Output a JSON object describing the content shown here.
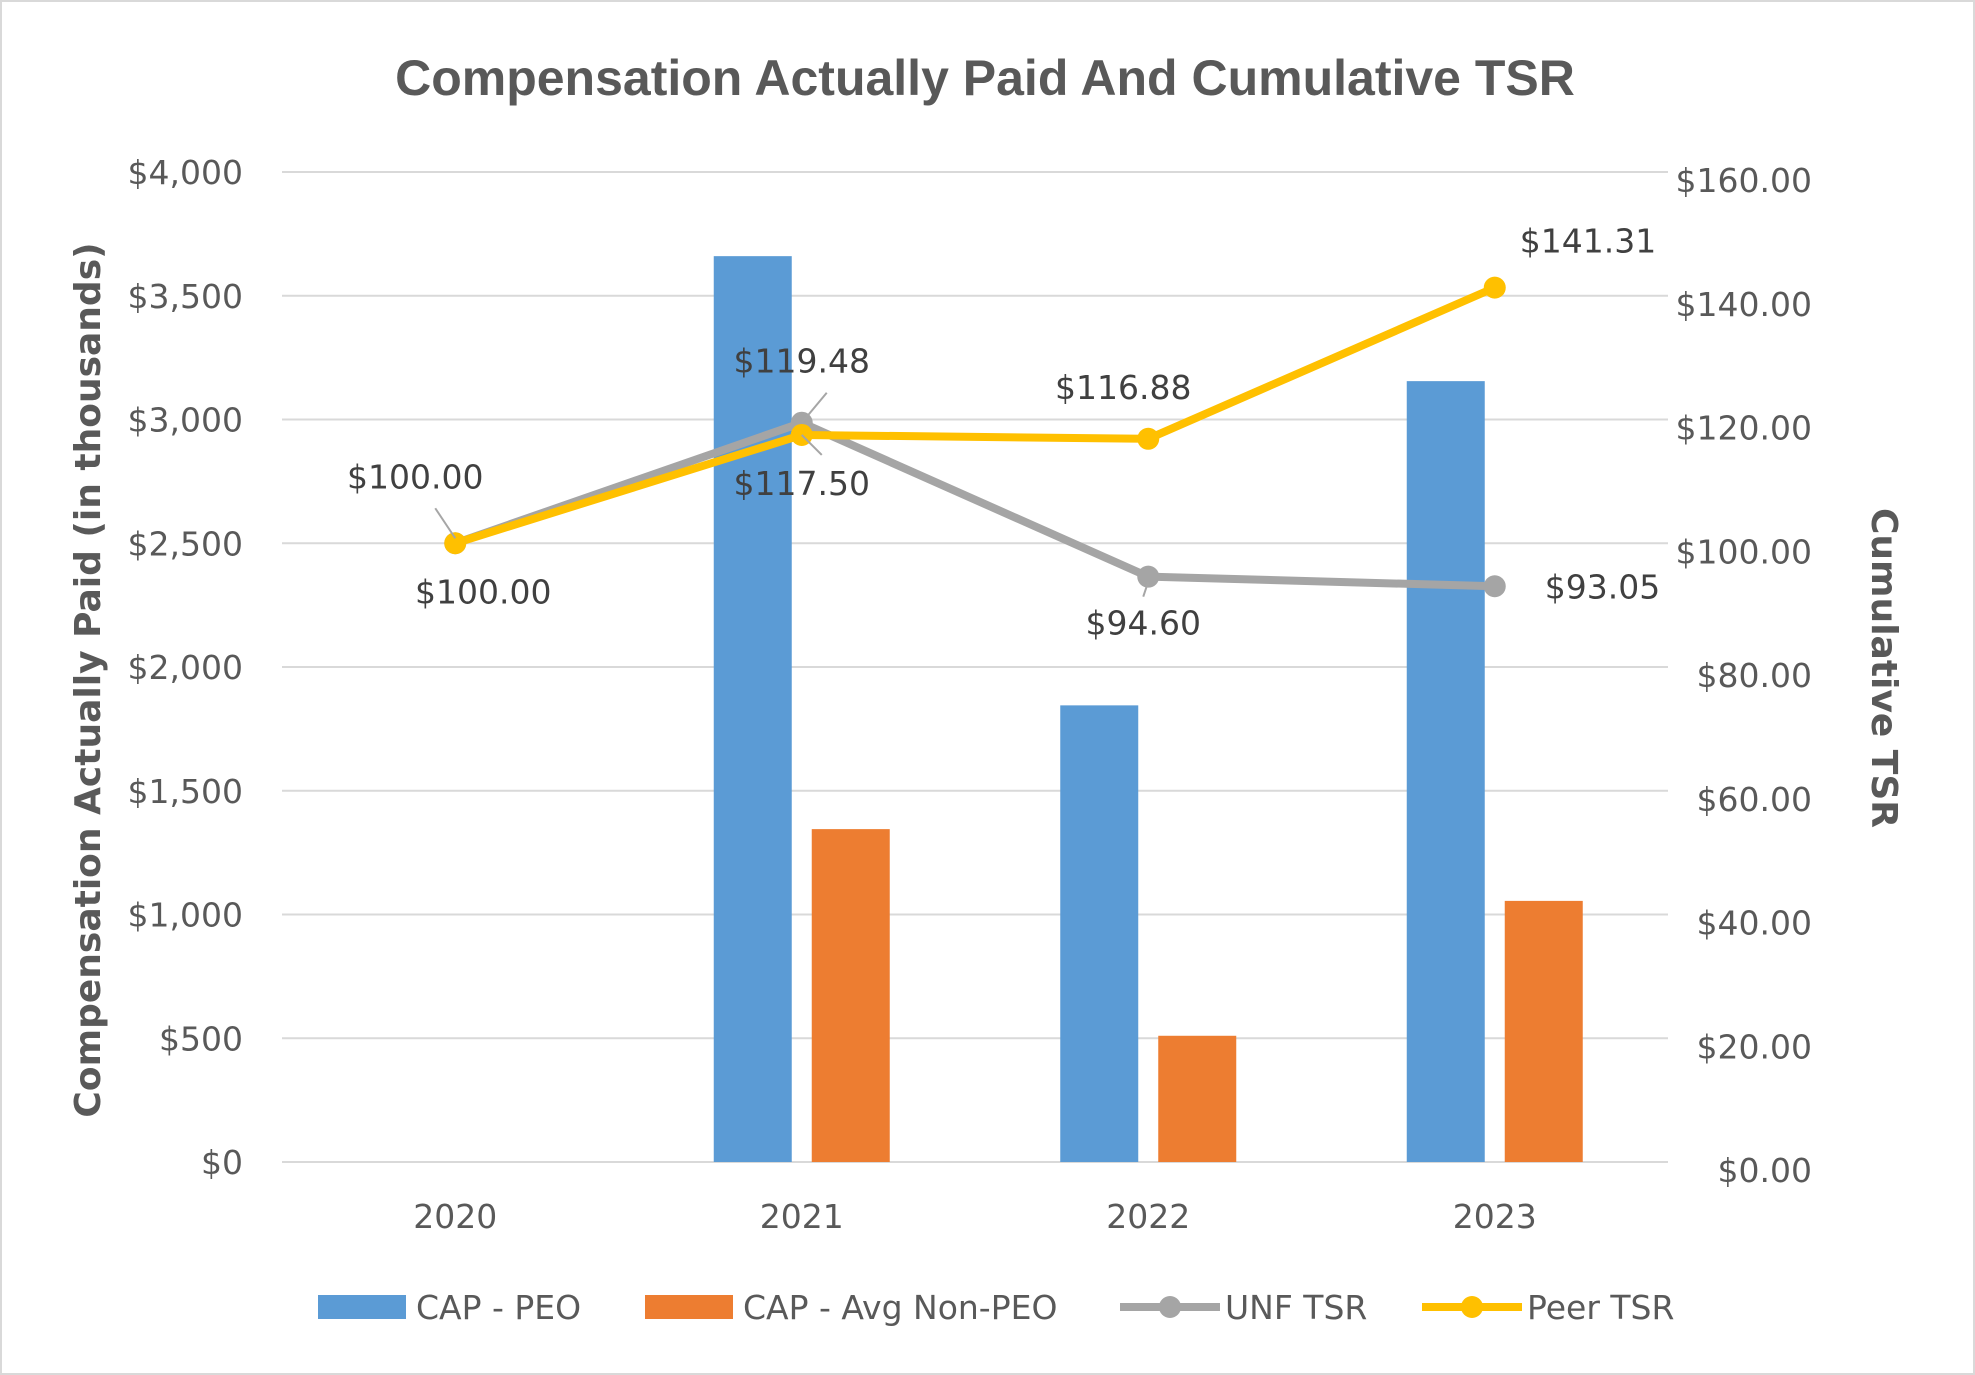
{
  "chart_data": {
    "type": "bar",
    "title": "Compensation Actually Paid And Cumulative TSR",
    "categories": [
      "2020",
      "2021",
      "2022",
      "2023"
    ],
    "ylabel": "Compensation Actually Paid (in thousands)",
    "y2label": "Cumulative TSR",
    "ylim": [
      0,
      4000
    ],
    "y2lim": [
      0,
      160
    ],
    "grid": true,
    "legend_position": "bottom",
    "y_ticks": [
      "$0",
      "$500",
      "$1,000",
      "$1,500",
      "$2,000",
      "$2,500",
      "$3,000",
      "$3,500",
      "$4,000"
    ],
    "y2_ticks": [
      "$0.00",
      "$20.00",
      "$40.00",
      "$60.00",
      "$80.00",
      "$100.00",
      "$120.00",
      "$140.00",
      "$160.00"
    ],
    "series": [
      {
        "name": "CAP - PEO",
        "type": "bar",
        "axis": "left",
        "color": "#5b9bd5",
        "values": [
          null,
          3660,
          1845,
          3155
        ]
      },
      {
        "name": "CAP - Avg Non-PEO",
        "type": "bar",
        "axis": "left",
        "color": "#ed7d31",
        "values": [
          null,
          1345,
          510,
          1055
        ]
      },
      {
        "name": "UNF TSR",
        "type": "line",
        "axis": "right",
        "color": "#a5a5a5",
        "values": [
          100.0,
          119.48,
          94.6,
          93.05
        ],
        "labels": [
          "$100.00",
          "$119.48",
          "$94.60",
          "$93.05"
        ]
      },
      {
        "name": "Peer TSR",
        "type": "line",
        "axis": "right",
        "color": "#ffc000",
        "values": [
          100.0,
          117.5,
          116.88,
          141.31
        ],
        "labels": [
          "$100.00",
          "$117.50",
          "$116.88",
          "$141.31"
        ]
      }
    ]
  }
}
